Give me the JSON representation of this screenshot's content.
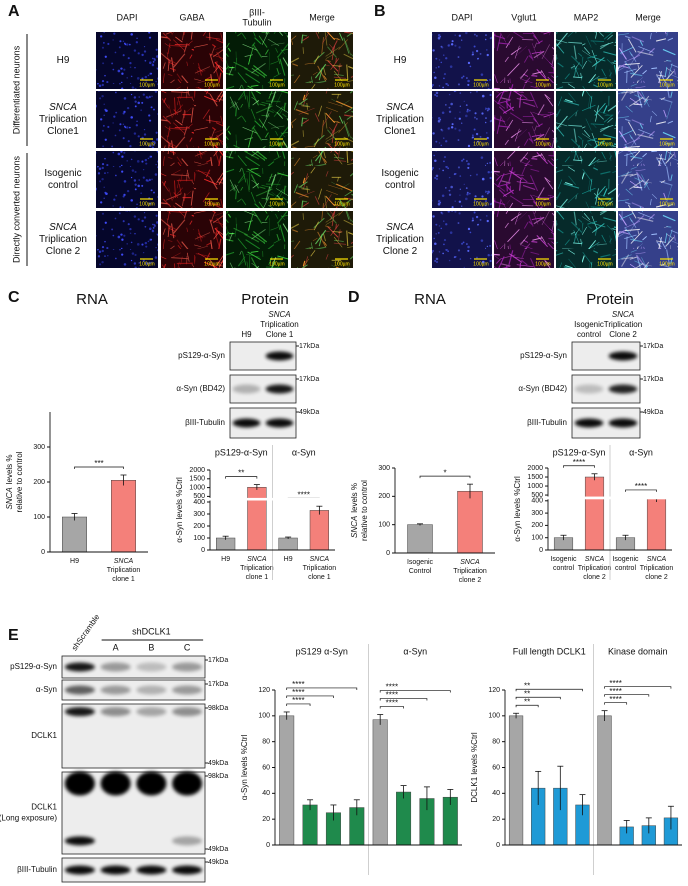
{
  "panels": {
    "a": {
      "letter": "A",
      "columns": [
        [
          "DAPI"
        ],
        [
          "GABA"
        ],
        [
          "βIII-",
          "Tubulin"
        ],
        [
          "Merge"
        ]
      ],
      "rows": [
        {
          "lines": [
            "H9"
          ]
        },
        {
          "gene": "SNCA",
          "lines": [
            "Triplication",
            "Clone1"
          ]
        },
        {
          "lines": [
            "Isogenic",
            "control"
          ]
        },
        {
          "gene": "SNCA",
          "lines": [
            "Triplication",
            "Clone 2"
          ]
        }
      ],
      "groups": [
        "Differentiated neurons",
        "Directly converted neurons"
      ],
      "scale_bar": "100µm"
    },
    "b": {
      "letter": "B",
      "columns": [
        [
          "DAPI"
        ],
        [
          "Vglut1"
        ],
        [
          "MAP2"
        ],
        [
          "Merge"
        ]
      ],
      "rows": [
        {
          "lines": [
            "H9"
          ]
        },
        {
          "gene": "SNCA",
          "lines": [
            "Triplication",
            "Clone1"
          ]
        },
        {
          "lines": [
            "Isogenic",
            "control"
          ]
        },
        {
          "gene": "SNCA",
          "lines": [
            "Triplication",
            "Clone 2"
          ]
        }
      ],
      "scale_bar": "100µm"
    },
    "c": {
      "letter": "C",
      "rna": "RNA",
      "protein": "Protein",
      "lanes": [
        {
          "lines": [
            "H9"
          ]
        },
        {
          "gene": "SNCA",
          "lines": [
            "Triplication",
            "Clone 1"
          ]
        }
      ],
      "blots": [
        {
          "label": [
            "pS129-α-Syn"
          ],
          "kda": [
            "17kDa"
          ]
        },
        {
          "label": [
            "α-Syn (BD42)"
          ],
          "kda": [
            "17kDa"
          ]
        },
        {
          "label": [
            "βIII-Tubulin"
          ],
          "kda": [
            "49kDa"
          ]
        }
      ]
    },
    "d": {
      "letter": "D",
      "rna": "RNA",
      "protein": "Protein",
      "lanes": [
        {
          "lines": [
            "Isogenic",
            "control"
          ]
        },
        {
          "gene": "SNCA",
          "lines": [
            "Triplication",
            "Clone 2"
          ]
        }
      ],
      "blots": [
        {
          "label": [
            "pS129-α-Syn"
          ],
          "kda": [
            "17kDa"
          ]
        },
        {
          "label": [
            "α-Syn (BD42)"
          ],
          "kda": [
            "17kDa"
          ]
        },
        {
          "label": [
            "βIII-Tubulin"
          ],
          "kda": [
            "49kDa"
          ]
        }
      ]
    },
    "e": {
      "letter": "E",
      "control_lane": "shScramble",
      "group": "shDCLK1",
      "sublanes": [
        "A",
        "B",
        "C"
      ],
      "blots": [
        {
          "label": [
            "pS129-α-Syn"
          ],
          "kda": [
            "17kDa"
          ]
        },
        {
          "label": [
            "α-Syn"
          ],
          "kda": [
            "17kDa"
          ]
        },
        {
          "label": [
            "DCLK1"
          ],
          "kda": [
            "98kDa",
            "49kDa"
          ]
        },
        {
          "label": [
            "DCLK1",
            "(Long exposure)"
          ],
          "kda": [
            "98kDa",
            "49kDa"
          ]
        },
        {
          "label": [
            "βIII-Tubulin"
          ],
          "kda": [
            "49kDa"
          ]
        }
      ]
    }
  },
  "chart_data": [
    {
      "type": "bar",
      "ylabel": {
        "gene": "SNCA",
        "lines": [
          "levels %",
          "relative to control"
        ]
      },
      "ylim": [
        0,
        400
      ],
      "yticks": [
        0,
        100,
        200,
        300
      ],
      "colors": [
        "#a6a6a6",
        "#f4807a"
      ],
      "groups": [
        {
          "categories": [
            {
              "lines": [
                "H9"
              ]
            },
            {
              "gene": "SNCA",
              "lines": [
                "Triplication",
                "clone 1"
              ]
            }
          ],
          "values": [
            100,
            205
          ],
          "errors": [
            10,
            15
          ],
          "significance": [
            null,
            "***"
          ]
        }
      ]
    },
    {
      "type": "bar",
      "ylabel": {
        "lines": [
          "α-Syn levels %Ctrl"
        ]
      },
      "ylim_lower": [
        0,
        400
      ],
      "ylim_upper": [
        500,
        2000
      ],
      "yticks": [
        0,
        100,
        200,
        300,
        400,
        500,
        1000,
        1500,
        2000
      ],
      "colors": [
        "#a6a6a6",
        "#f4807a"
      ],
      "groups": [
        {
          "title": "pS129-α-Syn",
          "categories": [
            {
              "lines": [
                "H9"
              ]
            },
            {
              "gene": "SNCA",
              "lines": [
                "Triplication",
                "clone 1"
              ]
            }
          ],
          "values": [
            100,
            1020
          ],
          "errors": [
            15,
            150
          ],
          "significance": [
            null,
            "**"
          ]
        },
        {
          "title": "α-Syn",
          "categories": [
            {
              "lines": [
                "H9"
              ]
            },
            {
              "gene": "SNCA",
              "lines": [
                "Triplication",
                "clone 1"
              ]
            }
          ],
          "values": [
            100,
            330
          ],
          "errors": [
            8,
            35
          ],
          "significance": [
            null,
            "****"
          ]
        }
      ]
    },
    {
      "type": "bar",
      "ylabel": {
        "gene": "SNCA",
        "lines": [
          "levels %",
          "relative to control"
        ]
      },
      "ylim": [
        0,
        300
      ],
      "yticks": [
        0,
        100,
        200,
        300
      ],
      "colors": [
        "#a6a6a6",
        "#f4807a"
      ],
      "groups": [
        {
          "categories": [
            {
              "lines": [
                "Isogenic",
                "Control"
              ]
            },
            {
              "gene": "SNCA",
              "lines": [
                "Triplication",
                "clone 2"
              ]
            }
          ],
          "values": [
            100,
            218
          ],
          "errors": [
            3,
            25
          ],
          "significance": [
            null,
            "*"
          ]
        }
      ]
    },
    {
      "type": "bar",
      "ylabel": {
        "lines": [
          "α-Syn levels %Ctrl"
        ]
      },
      "ylim_lower": [
        0,
        400
      ],
      "ylim_upper": [
        500,
        2000
      ],
      "yticks": [
        0,
        100,
        200,
        300,
        400,
        500,
        1000,
        1500,
        2000
      ],
      "colors": [
        "#a6a6a6",
        "#f4807a"
      ],
      "groups": [
        {
          "title": "pS129-α-Syn",
          "categories": [
            {
              "lines": [
                "Isogenic",
                "control"
              ]
            },
            {
              "gene": "SNCA",
              "lines": [
                "Triplication",
                "clone 2"
              ]
            }
          ],
          "values": [
            100,
            1500
          ],
          "errors": [
            20,
            180
          ],
          "significance": [
            null,
            "****"
          ]
        },
        {
          "title": "α-Syn",
          "categories": [
            {
              "lines": [
                "Isogenic",
                "control"
              ]
            },
            {
              "gene": "SNCA",
              "lines": [
                "Triplication",
                "clone 2"
              ]
            }
          ],
          "values": [
            100,
            420
          ],
          "errors": [
            20,
            30
          ],
          "significance": [
            null,
            "****"
          ]
        }
      ]
    },
    {
      "type": "bar",
      "ylabel": {
        "lines": [
          "α-Syn levels %Ctrl"
        ]
      },
      "ylim": [
        0,
        120
      ],
      "yticks": [
        0,
        20,
        40,
        60,
        80,
        100,
        120
      ],
      "colors": [
        "#a6a6a6",
        "#1f8a4c"
      ],
      "groups": [
        {
          "title": "pS129 α-Syn",
          "values": [
            100,
            31,
            25,
            29
          ],
          "errors": [
            3,
            4,
            6,
            6
          ],
          "significance": [
            null,
            "****",
            "****",
            "****"
          ]
        },
        {
          "title": "α-Syn",
          "values": [
            97,
            41,
            36,
            37
          ],
          "errors": [
            4,
            5,
            9,
            6
          ],
          "significance": [
            null,
            "****",
            "****",
            "****"
          ]
        }
      ]
    },
    {
      "type": "bar",
      "ylabel": {
        "lines": [
          "DCLK1 levels %Ctrl"
        ]
      },
      "ylim": [
        0,
        120
      ],
      "yticks": [
        0,
        20,
        40,
        60,
        80,
        100,
        120
      ],
      "colors": [
        "#a6a6a6",
        "#1f9ad6"
      ],
      "groups": [
        {
          "title": "Full length DCLK1",
          "values": [
            100,
            44,
            44,
            31
          ],
          "errors": [
            2,
            13,
            17,
            8
          ],
          "significance": [
            null,
            "**",
            "**",
            "**"
          ]
        },
        {
          "title": "Kinase domain",
          "values": [
            100,
            14,
            15,
            21
          ],
          "errors": [
            4,
            5,
            6,
            9
          ],
          "significance": [
            null,
            "****",
            "****",
            "****"
          ]
        }
      ]
    }
  ]
}
